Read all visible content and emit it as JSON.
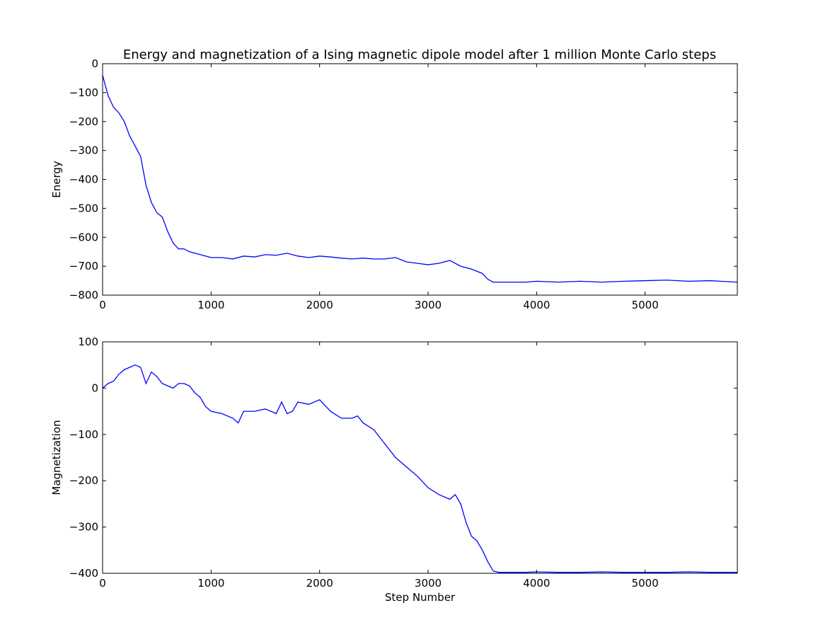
{
  "title": "Energy and magnetization of a Ising magnetic dipole model after 1 million Monte Carlo steps",
  "line_color": "#0000ff",
  "chart_data": [
    {
      "type": "line",
      "title": "Energy and magnetization of a Ising magnetic dipole model after 1 million Monte Carlo steps",
      "xlabel": "",
      "ylabel": "Energy",
      "xlim": [
        0,
        5850
      ],
      "ylim": [
        -800,
        0
      ],
      "xticks": [
        "0",
        "1000",
        "2000",
        "3000",
        "4000",
        "5000"
      ],
      "yticks": [
        "0",
        "−100",
        "−200",
        "−300",
        "−400",
        "−500",
        "−600",
        "−700",
        "−800"
      ],
      "grid": false,
      "x": [
        0,
        50,
        100,
        150,
        200,
        250,
        300,
        350,
        400,
        450,
        500,
        550,
        600,
        650,
        700,
        750,
        800,
        900,
        1000,
        1100,
        1200,
        1300,
        1400,
        1500,
        1600,
        1700,
        1800,
        1900,
        2000,
        2100,
        2200,
        2300,
        2400,
        2500,
        2600,
        2700,
        2800,
        2900,
        3000,
        3100,
        3200,
        3300,
        3400,
        3500,
        3550,
        3600,
        3650,
        3700,
        3800,
        3900,
        4000,
        4200,
        4400,
        4600,
        4800,
        5000,
        5200,
        5400,
        5600,
        5850
      ],
      "series": [
        {
          "values": [
            -40,
            -110,
            -150,
            -170,
            -200,
            -250,
            -285,
            -320,
            -420,
            -480,
            -515,
            -530,
            -580,
            -620,
            -640,
            -640,
            -650,
            -660,
            -670,
            -670,
            -675,
            -665,
            -668,
            -660,
            -662,
            -655,
            -665,
            -670,
            -665,
            -668,
            -672,
            -675,
            -672,
            -675,
            -675,
            -670,
            -685,
            -690,
            -695,
            -690,
            -680,
            -700,
            -710,
            -725,
            -745,
            -755,
            -755,
            -755,
            -755,
            -755,
            -752,
            -755,
            -752,
            -755,
            -752,
            -750,
            -748,
            -752,
            -750,
            -755
          ]
        }
      ]
    },
    {
      "type": "line",
      "title": "",
      "xlabel": "Step Number",
      "ylabel": "Magnetization",
      "xlim": [
        0,
        5850
      ],
      "ylim": [
        -400,
        100
      ],
      "xticks": [
        "0",
        "1000",
        "2000",
        "3000",
        "4000",
        "5000"
      ],
      "yticks": [
        "100",
        "0",
        "−100",
        "−200",
        "−300",
        "−400"
      ],
      "grid": false,
      "x": [
        0,
        50,
        100,
        150,
        200,
        250,
        300,
        350,
        400,
        450,
        500,
        550,
        600,
        650,
        700,
        750,
        800,
        850,
        900,
        950,
        1000,
        1100,
        1200,
        1250,
        1300,
        1400,
        1500,
        1600,
        1650,
        1700,
        1750,
        1800,
        1900,
        2000,
        2100,
        2200,
        2300,
        2350,
        2400,
        2500,
        2600,
        2700,
        2800,
        2900,
        3000,
        3100,
        3200,
        3250,
        3300,
        3350,
        3400,
        3450,
        3500,
        3550,
        3600,
        3650,
        3700,
        3800,
        3900,
        4000,
        4200,
        4400,
        4600,
        4800,
        5000,
        5200,
        5400,
        5600,
        5850
      ],
      "series": [
        {
          "values": [
            0,
            10,
            15,
            30,
            40,
            45,
            50,
            45,
            10,
            35,
            25,
            10,
            5,
            0,
            10,
            10,
            5,
            -10,
            -20,
            -40,
            -50,
            -55,
            -65,
            -75,
            -50,
            -50,
            -45,
            -55,
            -30,
            -55,
            -50,
            -30,
            -35,
            -25,
            -50,
            -65,
            -65,
            -60,
            -75,
            -90,
            -120,
            -150,
            -170,
            -190,
            -215,
            -230,
            -240,
            -230,
            -250,
            -290,
            -320,
            -330,
            -350,
            -375,
            -395,
            -398,
            -398,
            -398,
            -398,
            -397,
            -398,
            -398,
            -397,
            -398,
            -398,
            -398,
            -397,
            -398,
            -398
          ]
        }
      ]
    }
  ]
}
